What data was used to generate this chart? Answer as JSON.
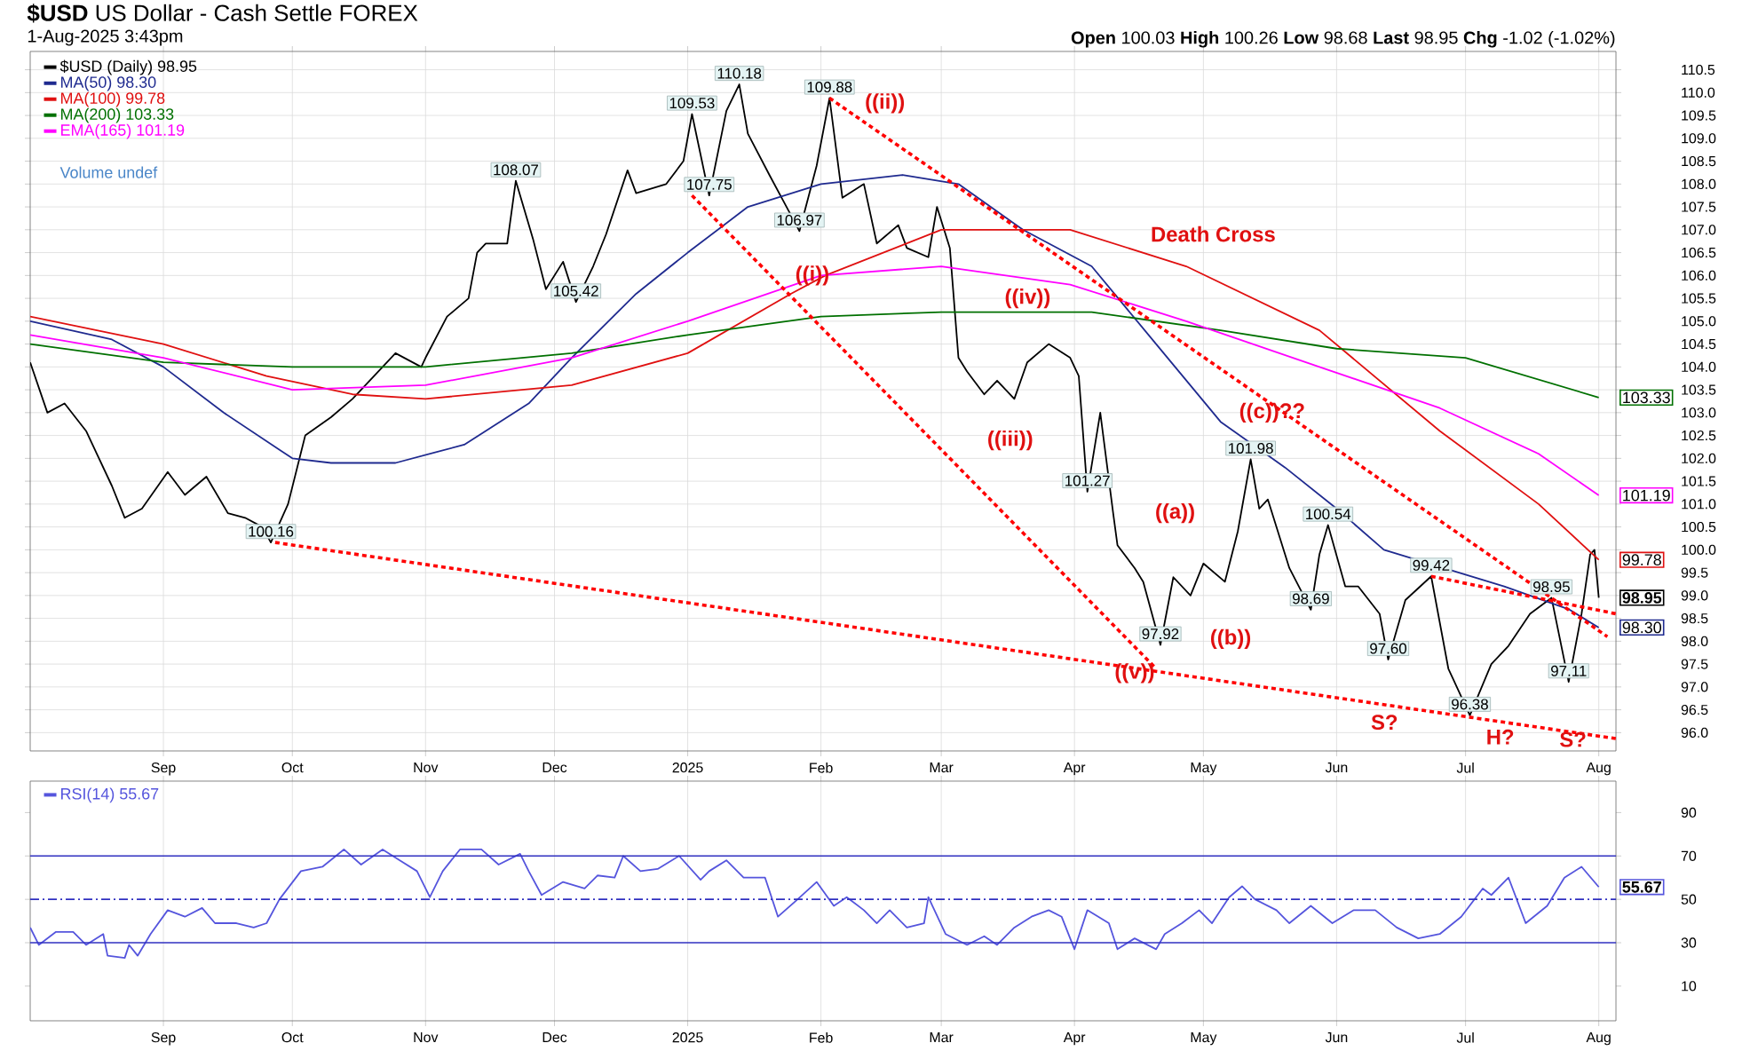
{
  "chart_data": [
    {
      "type": "line",
      "title": "**$USD** US Dollar - Cash Settle FOREX",
      "subtitle": "1-Aug-2025 3:43pm",
      "xlim": [
        "2024-08-01",
        "2025-08-05"
      ],
      "xticks": [
        {
          "value": "2024-09-01",
          "label": "Sep"
        },
        {
          "value": "2024-10-01",
          "label": "Oct"
        },
        {
          "value": "2024-11-01",
          "label": "Nov"
        },
        {
          "value": "2024-12-01",
          "label": "Dec"
        },
        {
          "value": "2025-01-01",
          "label": "2025"
        },
        {
          "value": "2025-02-01",
          "label": "Feb"
        },
        {
          "value": "2025-03-01",
          "label": "Mar"
        },
        {
          "value": "2025-04-01",
          "label": "Apr"
        },
        {
          "value": "2025-05-01",
          "label": "May"
        },
        {
          "value": "2025-06-01",
          "label": "Jun"
        },
        {
          "value": "2025-07-01",
          "label": "Jul"
        },
        {
          "value": "2025-08-01",
          "label": "Aug"
        }
      ],
      "ylim": [
        95.6,
        110.9
      ],
      "yticks": [
        {
          "value": 96,
          "label": "96.0"
        },
        {
          "value": 96.5,
          "label": "96.5"
        },
        {
          "value": 97,
          "label": "97.0"
        },
        {
          "value": 97.5,
          "label": "97.5"
        },
        {
          "value": 98,
          "label": "98.0"
        },
        {
          "value": 98.5,
          "label": "98.5"
        },
        {
          "value": 99,
          "label": "99.0"
        },
        {
          "value": 99.5,
          "label": "99.5"
        },
        {
          "value": 100,
          "label": "100.0"
        },
        {
          "value": 100.5,
          "label": "100.5"
        },
        {
          "value": 101,
          "label": "101.0"
        },
        {
          "value": 101.5,
          "label": "101.5"
        },
        {
          "value": 102,
          "label": "102.0"
        },
        {
          "value": 102.5,
          "label": "102.5"
        },
        {
          "value": 103,
          "label": "103.0"
        },
        {
          "value": 103.5,
          "label": "103.5"
        },
        {
          "value": 104,
          "label": "104.0"
        },
        {
          "value": 104.5,
          "label": "104.5"
        },
        {
          "value": 105,
          "label": "105.0"
        },
        {
          "value": 105.5,
          "label": "105.5"
        },
        {
          "value": 106,
          "label": "106.0"
        },
        {
          "value": 106.5,
          "label": "106.5"
        },
        {
          "value": 107,
          "label": "107.0"
        },
        {
          "value": 107.5,
          "label": "107.5"
        },
        {
          "value": 108,
          "label": "108.0"
        },
        {
          "value": 108.5,
          "label": "108.5"
        },
        {
          "value": 109,
          "label": "109.0"
        },
        {
          "value": 109.5,
          "label": "109.5"
        },
        {
          "value": 110,
          "label": "110.0"
        },
        {
          "value": 110.5,
          "label": "110.5"
        }
      ],
      "grid": true,
      "legend": "top left",
      "series": [
        {
          "name": "$USD (Daily) 98.95",
          "color": "#000000",
          "x": [
            "2024-08-01",
            "2024-08-05",
            "2024-08-09",
            "2024-08-14",
            "2024-08-20",
            "2024-08-23",
            "2024-08-27",
            "2024-09-02",
            "2024-09-06",
            "2024-09-11",
            "2024-09-16",
            "2024-09-20",
            "2024-09-24",
            "2024-09-26",
            "2024-09-30",
            "2024-10-04",
            "2024-10-10",
            "2024-10-15",
            "2024-10-22",
            "2024-10-25",
            "2024-10-31",
            "2024-11-01",
            "2024-11-06",
            "2024-11-11",
            "2024-11-13",
            "2024-11-15",
            "2024-11-20",
            "2024-11-22",
            "2024-11-26",
            "2024-11-29",
            "2024-12-03",
            "2024-12-06",
            "2024-12-10",
            "2024-12-13",
            "2024-12-18",
            "2024-12-20",
            "2024-12-27",
            "2024-12-31",
            "2025-01-02",
            "2025-01-06",
            "2025-01-10",
            "2025-01-13",
            "2025-01-15",
            "2025-01-20",
            "2025-01-24",
            "2025-01-27",
            "2025-01-31",
            "2025-02-03",
            "2025-02-06",
            "2025-02-11",
            "2025-02-14",
            "2025-02-19",
            "2025-02-21",
            "2025-02-26",
            "2025-02-28",
            "2025-03-03",
            "2025-03-05",
            "2025-03-07",
            "2025-03-11",
            "2025-03-14",
            "2025-03-18",
            "2025-03-21",
            "2025-03-26",
            "2025-03-31",
            "2025-04-02",
            "2025-04-04",
            "2025-04-07",
            "2025-04-10",
            "2025-04-11",
            "2025-04-15",
            "2025-04-17",
            "2025-04-21",
            "2025-04-24",
            "2025-04-28",
            "2025-05-01",
            "2025-05-06",
            "2025-05-09",
            "2025-05-12",
            "2025-05-14",
            "2025-05-16",
            "2025-05-21",
            "2025-05-26",
            "2025-05-28",
            "2025-05-30",
            "2025-06-03",
            "2025-06-06",
            "2025-06-11",
            "2025-06-13",
            "2025-06-17",
            "2025-06-23",
            "2025-06-27",
            "2025-07-02",
            "2025-07-07",
            "2025-07-11",
            "2025-07-16",
            "2025-07-21",
            "2025-07-25",
            "2025-07-28",
            "2025-07-30",
            "2025-07-31",
            "2025-08-01"
          ],
          "values": [
            104.1,
            103.0,
            103.2,
            102.6,
            101.4,
            100.7,
            100.9,
            101.7,
            101.2,
            101.6,
            100.8,
            100.7,
            100.5,
            100.16,
            101.0,
            102.5,
            102.9,
            103.3,
            104.0,
            104.3,
            104.0,
            104.2,
            105.1,
            105.5,
            106.5,
            106.7,
            106.7,
            108.07,
            106.8,
            105.7,
            106.3,
            105.42,
            106.2,
            106.9,
            108.3,
            107.8,
            108.0,
            108.5,
            109.53,
            107.75,
            109.6,
            110.18,
            109.1,
            108.2,
            107.5,
            106.97,
            108.4,
            109.88,
            107.7,
            108.0,
            106.7,
            107.1,
            106.6,
            106.4,
            107.5,
            106.6,
            104.2,
            103.9,
            103.4,
            103.7,
            103.3,
            104.1,
            104.5,
            104.2,
            103.8,
            101.27,
            103.0,
            100.8,
            100.1,
            99.6,
            99.3,
            97.92,
            99.4,
            99.0,
            99.7,
            99.3,
            100.4,
            101.98,
            100.9,
            101.1,
            99.6,
            98.69,
            99.9,
            100.54,
            99.2,
            99.2,
            98.6,
            97.6,
            98.9,
            99.42,
            97.4,
            96.38,
            97.5,
            97.9,
            98.6,
            98.95,
            97.11,
            98.6,
            99.9,
            100.0,
            98.95
          ]
        },
        {
          "name": "MA(50) 98.30",
          "color": "#1f2a8f",
          "x": [
            "2024-08-01",
            "2024-08-20",
            "2024-09-01",
            "2024-09-15",
            "2024-10-01",
            "2024-10-10",
            "2024-10-25",
            "2024-11-10",
            "2024-11-25",
            "2024-12-05",
            "2024-12-20",
            "2025-01-01",
            "2025-01-15",
            "2025-02-01",
            "2025-02-20",
            "2025-03-05",
            "2025-03-20",
            "2025-04-05",
            "2025-04-20",
            "2025-05-05",
            "2025-05-20",
            "2025-06-01",
            "2025-06-12",
            "2025-07-10",
            "2025-07-25",
            "2025-08-01"
          ],
          "values": [
            105.0,
            104.6,
            104.0,
            103.0,
            102.0,
            101.9,
            101.9,
            102.3,
            103.2,
            104.2,
            105.6,
            106.5,
            107.5,
            108.0,
            108.2,
            108.0,
            107.0,
            106.2,
            104.5,
            102.8,
            101.8,
            100.9,
            100.0,
            99.2,
            98.7,
            98.3
          ]
        },
        {
          "name": "MA(100) 99.78",
          "color": "#e01010",
          "x": [
            "2024-08-01",
            "2024-09-01",
            "2024-09-25",
            "2024-10-15",
            "2024-11-01",
            "2024-12-05",
            "2025-01-01",
            "2025-01-25",
            "2025-02-02",
            "2025-03-01",
            "2025-03-31",
            "2025-04-27",
            "2025-05-28",
            "2025-06-25",
            "2025-07-18",
            "2025-08-01"
          ],
          "values": [
            105.1,
            104.5,
            103.8,
            103.4,
            103.3,
            103.6,
            104.3,
            105.6,
            106.0,
            107.0,
            107.0,
            106.2,
            104.8,
            102.6,
            101.0,
            99.78
          ]
        },
        {
          "name": "MA(200) 103.33",
          "color": "#007000",
          "x": [
            "2024-08-01",
            "2024-09-01",
            "2024-10-01",
            "2024-11-01",
            "2024-12-05",
            "2025-01-01",
            "2025-02-01",
            "2025-03-01",
            "2025-04-05",
            "2025-05-05",
            "2025-06-01",
            "2025-07-01",
            "2025-08-01"
          ],
          "values": [
            104.5,
            104.1,
            104.0,
            104.0,
            104.3,
            104.7,
            105.1,
            105.2,
            105.2,
            104.8,
            104.4,
            104.2,
            103.33
          ]
        },
        {
          "name": "EMA(165) 101.19",
          "color": "#ff00ff",
          "x": [
            "2024-08-01",
            "2024-09-01",
            "2024-10-01",
            "2024-11-01",
            "2024-12-05",
            "2025-01-01",
            "2025-02-01",
            "2025-03-01",
            "2025-03-31",
            "2025-04-27",
            "2025-05-28",
            "2025-06-25",
            "2025-07-18",
            "2025-08-01"
          ],
          "values": [
            104.7,
            104.2,
            103.5,
            103.6,
            104.2,
            105.0,
            106.0,
            106.2,
            105.8,
            105.0,
            104.0,
            103.1,
            102.1,
            101.19
          ]
        },
        {
          "color": "#ff0000",
          "line_style": "dotted",
          "x": [
            "2024-09-27",
            "2025-08-05"
          ],
          "values": [
            100.16,
            95.87
          ]
        },
        {
          "color": "#ff0000",
          "line_style": "dotted",
          "x": [
            "2025-02-03",
            "2025-08-03"
          ],
          "values": [
            109.88,
            98.1
          ]
        },
        {
          "color": "#ff0000",
          "line_style": "dotted",
          "x": [
            "2025-01-02",
            "2025-04-20"
          ],
          "values": [
            107.75,
            97.4
          ]
        },
        {
          "color": "#ff0000",
          "line_style": "dotted",
          "x": [
            "2025-06-23",
            "2025-08-05"
          ],
          "values": [
            99.42,
            98.6
          ]
        }
      ],
      "annotations": [
        "**Open** 100.03 **High** 100.26 **Low** 98.68 **Last** 98.95 **Chg** -1.02 (-1.02%)",
        "Volume undef",
        "((ii))",
        "((iii))",
        "((iv))",
        "((a))",
        "((b))",
        "Death Cross",
        "S?",
        "H?",
        {
          "text": "100.16",
          "x": "2024-09-26",
          "y": 100.16
        },
        {
          "text": "108.07",
          "x": "2024-11-22",
          "y": 108.07
        },
        {
          "text": "105.42",
          "x": "2024-12-06",
          "y": 105.42
        },
        {
          "text": "109.53",
          "x": "2025-01-02",
          "y": 109.53
        },
        {
          "text": "107.75",
          "x": "2025-01-06",
          "y": 107.75
        },
        {
          "text": "110.18",
          "x": "2025-01-13",
          "y": 110.18
        },
        {
          "text": "106.97",
          "x": "2025-01-27",
          "y": 106.97
        },
        {
          "text": "109.88",
          "x": "2025-02-03",
          "y": 109.88
        },
        {
          "text": "101.27",
          "x": "2025-04-04",
          "y": 101.27
        },
        {
          "text": "97.92",
          "x": "2025-04-21",
          "y": 97.92
        },
        {
          "text": "101.98",
          "x": "2025-05-12",
          "y": 101.98
        },
        {
          "text": "98.69",
          "x": "2025-05-26",
          "y": 98.69
        },
        {
          "text": "100.54",
          "x": "2025-05-30",
          "y": 100.54
        },
        {
          "text": "97.60",
          "x": "2025-06-13",
          "y": 97.6
        },
        {
          "text": "99.42",
          "x": "2025-06-23",
          "y": 99.42
        },
        {
          "text": "96.38",
          "x": "2025-07-02",
          "y": 96.38
        },
        {
          "text": "98.95",
          "x": "2025-07-21",
          "y": 98.95
        },
        {
          "text": "97.11",
          "x": "2025-07-25",
          "y": 97.11
        },
        {
          "text": "((i))",
          "x": "2025-01-30",
          "y": 106.0
        },
        {
          "text": "((v))",
          "x": "2025-04-15",
          "y": 97.3
        },
        {
          "text": "((c))??",
          "x": "2025-05-17",
          "y": 103.0
        },
        {
          "text": "S?",
          "x": "2025-07-26",
          "y": 95.85
        },
        {
          "text": "103.33",
          "x": "2025-08-01",
          "y": 103.33
        },
        {
          "text": "101.19",
          "x": "2025-08-01",
          "y": 101.19
        },
        {
          "text": "99.78",
          "x": "2025-08-01",
          "y": 99.78
        },
        {
          "text": "98.95",
          "x": "2025-08-01",
          "y": 98.95
        },
        {
          "text": "98.30",
          "x": "2025-08-01",
          "y": 98.3
        }
      ]
    },
    {
      "type": "line",
      "xlim": [
        "2024-08-01",
        "2025-08-05"
      ],
      "xticks": [
        {
          "value": "2024-09-01",
          "label": "Sep"
        },
        {
          "value": "2024-10-01",
          "label": "Oct"
        },
        {
          "value": "2024-11-01",
          "label": "Nov"
        },
        {
          "value": "2024-12-01",
          "label": "Dec"
        },
        {
          "value": "2025-01-01",
          "label": "2025"
        },
        {
          "value": "2025-02-01",
          "label": "Feb"
        },
        {
          "value": "2025-03-01",
          "label": "Mar"
        },
        {
          "value": "2025-04-01",
          "label": "Apr"
        },
        {
          "value": "2025-05-01",
          "label": "May"
        },
        {
          "value": "2025-06-01",
          "label": "Jun"
        },
        {
          "value": "2025-07-01",
          "label": "Jul"
        },
        {
          "value": "2025-08-01",
          "label": "Aug"
        }
      ],
      "ylim": [
        -6,
        104.5
      ],
      "yticks": [
        10,
        30,
        50,
        70,
        90
      ],
      "grid": "x",
      "legend": "top left",
      "series": [
        {
          "name": "RSI(14) 55.67",
          "color": "#5555dd",
          "x": [
            "2024-08-01",
            "2024-08-03",
            "2024-08-07",
            "2024-08-11",
            "2024-08-14",
            "2024-08-18",
            "2024-08-19",
            "2024-08-23",
            "2024-08-24",
            "2024-08-26",
            "2024-08-29",
            "2024-09-02",
            "2024-09-06",
            "2024-09-10",
            "2024-09-13",
            "2024-09-18",
            "2024-09-22",
            "2024-09-25",
            "2024-09-28",
            "2024-10-03",
            "2024-10-08",
            "2024-10-13",
            "2024-10-17",
            "2024-10-22",
            "2024-10-26",
            "2024-10-30",
            "2024-11-02",
            "2024-11-05",
            "2024-11-09",
            "2024-11-14",
            "2024-11-18",
            "2024-11-23",
            "2024-11-25",
            "2024-11-28",
            "2024-12-03",
            "2024-12-08",
            "2024-12-11",
            "2024-12-15",
            "2024-12-17",
            "2024-12-21",
            "2024-12-25",
            "2024-12-30",
            "2025-01-04",
            "2025-01-06",
            "2025-01-10",
            "2025-01-14",
            "2025-01-19",
            "2025-01-22",
            "2025-01-26",
            "2025-01-31",
            "2025-02-04",
            "2025-02-07",
            "2025-02-11",
            "2025-02-14",
            "2025-02-17",
            "2025-02-21",
            "2025-02-25",
            "2025-02-26",
            "2025-03-02",
            "2025-03-07",
            "2025-03-11",
            "2025-03-14",
            "2025-03-18",
            "2025-03-22",
            "2025-03-26",
            "2025-03-29",
            "2025-04-01",
            "2025-04-04",
            "2025-04-09",
            "2025-04-11",
            "2025-04-15",
            "2025-04-20",
            "2025-04-22",
            "2025-04-26",
            "2025-04-30",
            "2025-05-03",
            "2025-05-07",
            "2025-05-10",
            "2025-05-13",
            "2025-05-18",
            "2025-05-21",
            "2025-05-26",
            "2025-05-31",
            "2025-06-05",
            "2025-06-10",
            "2025-06-15",
            "2025-06-20",
            "2025-06-25",
            "2025-06-30",
            "2025-07-05",
            "2025-07-07",
            "2025-07-11",
            "2025-07-15",
            "2025-07-20",
            "2025-07-24",
            "2025-07-28",
            "2025-08-01"
          ],
          "values": [
            37,
            29,
            35,
            35,
            29,
            34,
            24,
            23,
            29,
            24,
            34,
            45,
            42,
            46,
            39,
            39,
            37,
            39,
            50,
            63,
            65,
            73,
            66,
            73,
            68,
            63,
            51,
            63,
            73,
            73,
            66,
            71,
            63,
            52,
            58,
            55,
            61,
            60,
            70,
            63,
            64,
            70,
            59,
            63,
            68,
            60,
            60,
            42,
            49,
            58,
            47,
            51,
            45,
            39,
            45,
            37,
            39,
            51,
            34,
            29,
            33,
            29,
            37,
            42,
            45,
            42,
            27,
            45,
            39,
            27,
            32,
            27,
            34,
            39,
            45,
            39,
            51,
            56,
            50,
            45,
            39,
            47,
            39,
            45,
            45,
            37,
            32,
            34,
            42,
            55,
            52,
            60,
            39,
            47,
            60,
            65,
            55.67
          ]
        }
      ],
      "ref_lines": [
        {
          "axis": "y",
          "value": 70,
          "color": "#3030c0"
        },
        {
          "axis": "y",
          "value": 50,
          "color": "#3030c0",
          "line_style": "dashed"
        },
        {
          "axis": "y",
          "value": 30,
          "color": "#3030c0"
        }
      ],
      "annotations": [
        {
          "text": "55.67",
          "x": "2025-08-01",
          "y": 55.67
        }
      ]
    }
  ]
}
